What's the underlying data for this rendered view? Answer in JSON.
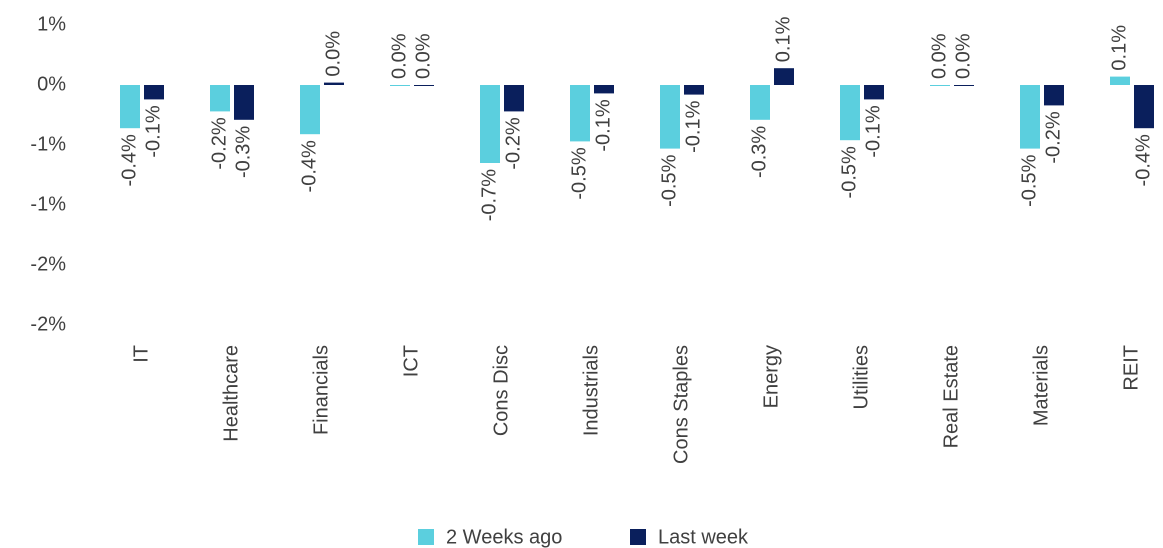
{
  "chart_data": {
    "type": "bar",
    "categories": [
      "IT",
      "Healthcare",
      "Financials",
      "ICT",
      "Cons Disc",
      "Industrials",
      "Cons Staples",
      "Energy",
      "Utilities",
      "Real Estate",
      "Materials",
      "REIT"
    ],
    "series": [
      {
        "name": "2 Weeks ago",
        "color": "#5bcfde",
        "values": [
          -0.36,
          -0.22,
          -0.41,
          0,
          -0.65,
          -0.47,
          -0.53,
          -0.29,
          -0.46,
          0,
          -0.53,
          0.07
        ],
        "value_labels": [
          "-0.4%",
          "-0.2%",
          "-0.4%",
          "0.0%",
          "-0.7%",
          "-0.5%",
          "-0.5%",
          "-0.3%",
          "-0.5%",
          "0.0%",
          "-0.5%",
          "0.1%"
        ]
      },
      {
        "name": "Last week",
        "color": "#0a1f5c",
        "values": [
          -0.12,
          -0.29,
          0.02,
          0,
          -0.22,
          -0.07,
          -0.08,
          0.14,
          -0.12,
          0,
          -0.17,
          -0.36
        ],
        "value_labels": [
          "-0.1%",
          "-0.3%",
          "0.0%",
          "0.0%",
          "-0.2%",
          "-0.1%",
          "-0.1%",
          "0.1%",
          "-0.1%",
          "0.0%",
          "-0.2%",
          "-0.4%"
        ]
      }
    ],
    "ylim": [
      -2.1,
      0.55
    ],
    "yticks": [
      {
        "value": 0.5,
        "label": "1%"
      },
      {
        "value": 0,
        "label": "0%"
      },
      {
        "value": -0.5,
        "label": "-1%"
      },
      {
        "value": -1,
        "label": "-1%"
      },
      {
        "value": -1.5,
        "label": "-2%"
      },
      {
        "value": -2,
        "label": "-2%"
      }
    ],
    "legend": "bottom"
  }
}
